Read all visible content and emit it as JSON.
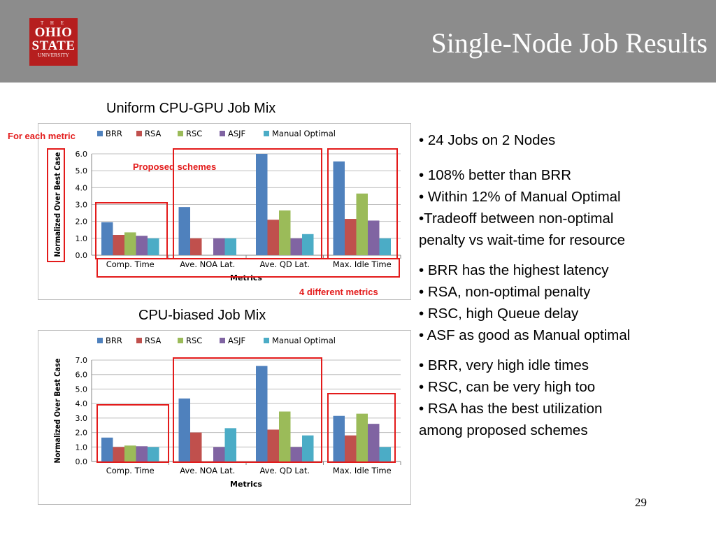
{
  "header": {
    "title": "Single-Node Job Results",
    "logo": {
      "line1": "T H E",
      "line2": "OHIO",
      "line3": "STATE",
      "line4": "UNIVERSITY"
    },
    "background_color": "#8c8c8c"
  },
  "annotations": {
    "for_each_metric": "For each metric",
    "proposed_schemes": "Proposed schemes",
    "four_metrics": "4 different metrics",
    "color": "#e31b1b"
  },
  "bullets": {
    "group1": [
      "• 24 Jobs on 2 Nodes"
    ],
    "group2": [
      "• 108% better than BRR",
      "• Within 12% of Manual Optimal",
      "•Tradeoff between non-optimal",
      "penalty vs wait-time for resource"
    ],
    "group3": [
      "• BRR has the highest latency",
      "• RSA, non-optimal penalty",
      "• RSC, high Queue delay",
      "• ASF as good as Manual optimal"
    ],
    "group4": [
      "• BRR, very high idle times",
      "• RSC, can be very high too",
      "• RSA has the best utilization",
      "among proposed schemes"
    ]
  },
  "page_number": "29",
  "chart_data": [
    {
      "type": "bar",
      "title": "Uniform CPU-GPU Job Mix",
      "xlabel": "Metrics",
      "ylabel": "Normalized Over Best Case",
      "categories": [
        "Comp. Time",
        "Ave. NOA Lat.",
        "Ave. QD Lat.",
        "Max. Idle Time"
      ],
      "ylim": [
        0,
        6
      ],
      "ticks": [
        "0.0",
        "1.0",
        "2.0",
        "3.0",
        "4.0",
        "5.0",
        "6.0"
      ],
      "legend_position": "top",
      "grid": true,
      "series": [
        {
          "name": "BRR",
          "color": "#4f81bd",
          "values": [
            1.95,
            2.85,
            6.0,
            5.55
          ]
        },
        {
          "name": "RSA",
          "color": "#c0504d",
          "values": [
            1.2,
            1.0,
            2.1,
            2.15
          ]
        },
        {
          "name": "RSC",
          "color": "#9bbb59",
          "values": [
            1.35,
            0,
            2.65,
            3.65
          ]
        },
        {
          "name": "ASJF",
          "color": "#8064a2",
          "values": [
            1.15,
            1.0,
            1.0,
            2.05
          ]
        },
        {
          "name": "Manual Optimal",
          "color": "#4bacc6",
          "values": [
            1.0,
            1.0,
            1.25,
            1.0
          ]
        }
      ]
    },
    {
      "type": "bar",
      "title": "CPU-biased Job Mix",
      "xlabel": "Metrics",
      "ylabel": "Normalized Over Best Case",
      "categories": [
        "Comp. Time",
        "Ave. NOA Lat.",
        "Ave. QD Lat.",
        "Max. Idle Time"
      ],
      "ylim": [
        0,
        7
      ],
      "ticks": [
        "0.0",
        "1.0",
        "2.0",
        "3.0",
        "4.0",
        "5.0",
        "6.0",
        "7.0"
      ],
      "legend_position": "top",
      "grid": true,
      "series": [
        {
          "name": "BRR",
          "color": "#4f81bd",
          "values": [
            1.65,
            4.35,
            6.6,
            3.15
          ]
        },
        {
          "name": "RSA",
          "color": "#c0504d",
          "values": [
            1.0,
            2.0,
            2.2,
            1.8
          ]
        },
        {
          "name": "RSC",
          "color": "#9bbb59",
          "values": [
            1.1,
            0,
            3.45,
            3.3
          ]
        },
        {
          "name": "ASJF",
          "color": "#8064a2",
          "values": [
            1.05,
            1.0,
            1.0,
            2.6
          ]
        },
        {
          "name": "Manual Optimal",
          "color": "#4bacc6",
          "values": [
            1.0,
            2.3,
            1.8,
            1.0
          ]
        }
      ]
    }
  ]
}
